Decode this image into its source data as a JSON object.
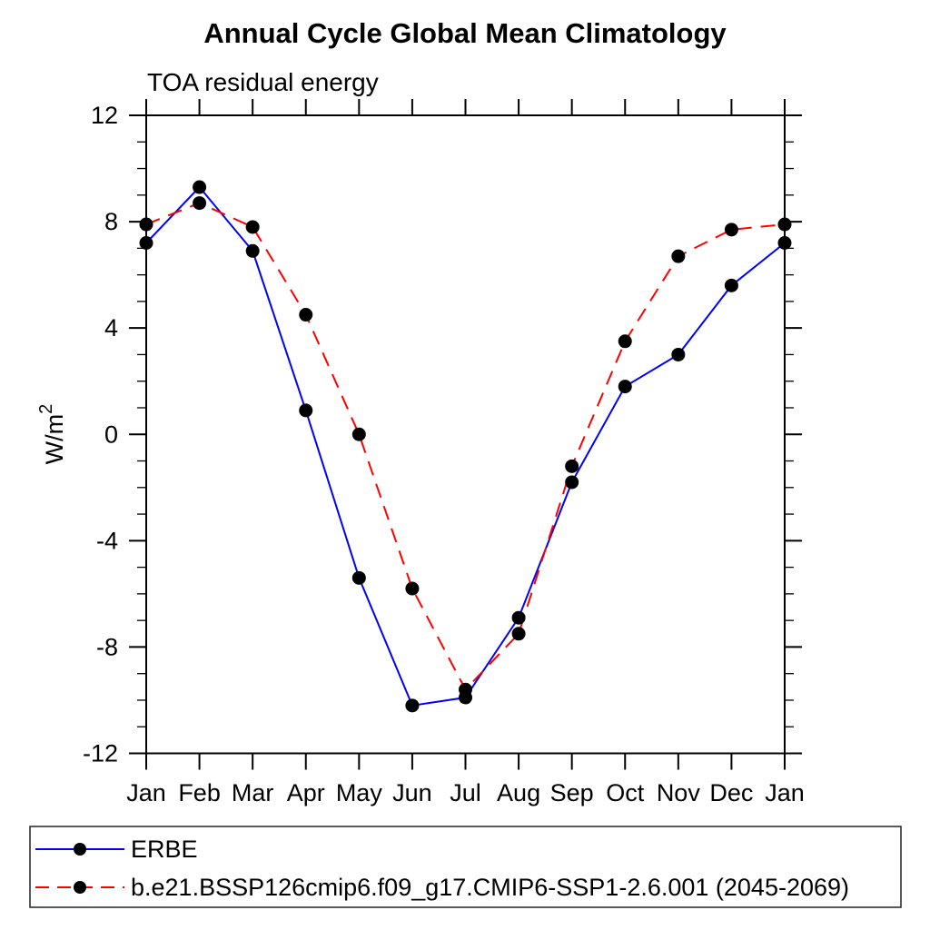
{
  "chart_data": {
    "type": "line",
    "title": "Annual Cycle Global Mean Climatology",
    "subtitle": "TOA residual energy",
    "ylabel_base": "W/m",
    "ylabel_sup": "2",
    "categories": [
      "Jan",
      "Feb",
      "Mar",
      "Apr",
      "May",
      "Jun",
      "Jul",
      "Aug",
      "Sep",
      "Oct",
      "Nov",
      "Dec",
      "Jan"
    ],
    "series": [
      {
        "name": "ERBE",
        "color": "#0000ff",
        "line_style": "solid",
        "marker": "filled-circle",
        "marker_color": "#000000",
        "values": [
          7.2,
          9.3,
          6.9,
          0.9,
          -5.4,
          -10.2,
          -9.9,
          -6.9,
          -1.8,
          1.8,
          3.0,
          5.6,
          7.2
        ]
      },
      {
        "name": "b.e21.BSSP126cmip6.f09_g17.CMIP6-SSP1-2.6.001 (2045-2069)",
        "color": "#ff0000",
        "line_style": "dashed",
        "marker": "filled-circle",
        "marker_color": "#000000",
        "values": [
          7.9,
          8.7,
          7.8,
          4.5,
          0.0,
          -5.8,
          -9.6,
          -7.5,
          -1.2,
          3.5,
          6.7,
          7.7,
          7.9
        ]
      }
    ],
    "ylim": [
      -12,
      12
    ],
    "y_major_ticks": [
      12,
      8,
      4,
      0,
      -4,
      -8,
      -12
    ],
    "y_major_tick_labels": [
      "12",
      "8",
      "4",
      "0",
      "-4",
      "-8",
      "-12"
    ],
    "y_minor_step": 1,
    "grid": false,
    "legend_position": "bottom-left-box",
    "axis_color": "#000000"
  }
}
